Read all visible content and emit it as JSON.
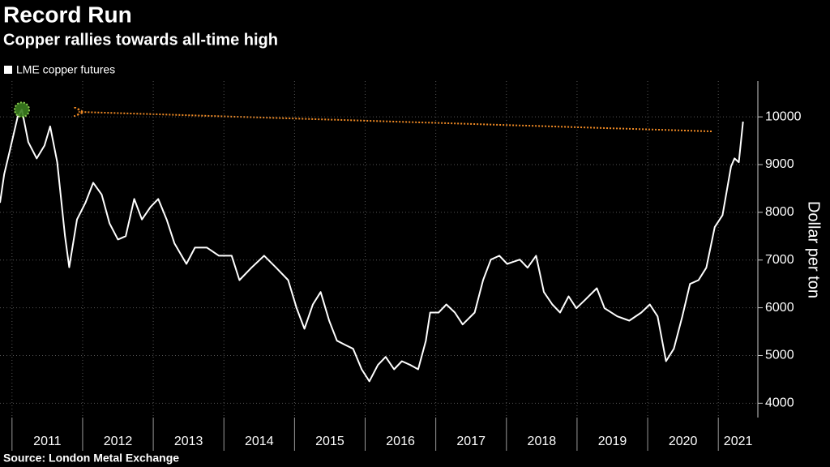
{
  "chart_data": {
    "type": "line",
    "title": "Record Run",
    "subtitle": "Copper rallies towards all-time high",
    "source": "Source: London Metal Exchange",
    "y_label": "Dollar per ton",
    "x": [
      2010.83,
      2010.89,
      2010.97,
      2011.08,
      2011.14,
      2011.23,
      2011.35,
      2011.46,
      2011.54,
      2011.64,
      2011.75,
      2011.81,
      2011.92,
      2012.04,
      2012.15,
      2012.27,
      2012.38,
      2012.5,
      2012.61,
      2012.73,
      2012.84,
      2012.96,
      2013.07,
      2013.19,
      2013.3,
      2013.47,
      2013.59,
      2013.76,
      2013.93,
      2014.11,
      2014.22,
      2014.39,
      2014.57,
      2014.74,
      2014.91,
      2015.03,
      2015.14,
      2015.26,
      2015.37,
      2015.49,
      2015.6,
      2015.72,
      2015.83,
      2015.95,
      2016.06,
      2016.18,
      2016.29,
      2016.41,
      2016.52,
      2016.64,
      2016.75,
      2016.86,
      2016.92,
      2017.04,
      2017.15,
      2017.27,
      2017.38,
      2017.55,
      2017.67,
      2017.78,
      2017.9,
      2018.01,
      2018.19,
      2018.3,
      2018.42,
      2018.53,
      2018.65,
      2018.76,
      2018.88,
      2018.99,
      2019.11,
      2019.28,
      2019.39,
      2019.57,
      2019.74,
      2019.91,
      2020.03,
      2020.14,
      2020.26,
      2020.37,
      2020.49,
      2020.6,
      2020.72,
      2020.83,
      2020.95,
      2021.06,
      2021.18,
      2021.23,
      2021.29,
      2021.35
    ],
    "series": [
      {
        "name": "LME copper futures",
        "color": "#ffffff",
        "values": [
          8200,
          8800,
          9300,
          10000,
          10150,
          9470,
          9130,
          9400,
          9800,
          9050,
          7500,
          6850,
          7850,
          8200,
          8620,
          8370,
          7770,
          7430,
          7500,
          8280,
          7850,
          8110,
          8280,
          7850,
          7350,
          6920,
          7260,
          7260,
          7090,
          7090,
          6580,
          6840,
          7090,
          6840,
          6580,
          5990,
          5560,
          6070,
          6330,
          5730,
          5310,
          5220,
          5140,
          4710,
          4460,
          4800,
          4970,
          4710,
          4880,
          4800,
          4710,
          5310,
          5900,
          5900,
          6070,
          5900,
          5650,
          5900,
          6580,
          7010,
          7090,
          6920,
          7010,
          6840,
          7090,
          6330,
          6070,
          5900,
          6240,
          5990,
          6160,
          6410,
          5990,
          5820,
          5730,
          5900,
          6070,
          5820,
          4880,
          5140,
          5820,
          6500,
          6580,
          6840,
          7690,
          7940,
          8960,
          9130,
          9050,
          9900
        ]
      }
    ],
    "xlim": [
      2010.83,
      2021.56
    ],
    "xticks": [
      2011,
      2012,
      2013,
      2014,
      2015,
      2016,
      2017,
      2018,
      2019,
      2020,
      2021
    ],
    "ylim": [
      3700,
      10750
    ],
    "yticks": [
      4000,
      5000,
      6000,
      7000,
      8000,
      9000,
      10000
    ],
    "grid": true
  }
}
